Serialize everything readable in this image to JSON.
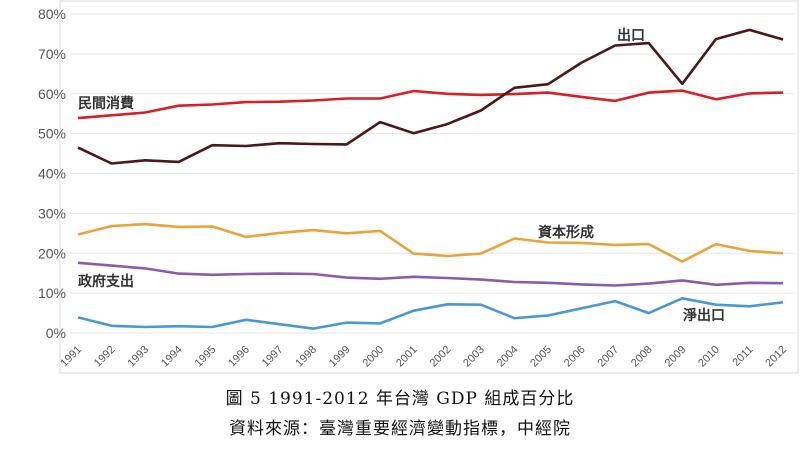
{
  "chart_data": {
    "type": "line",
    "categories": [
      "1991",
      "1992",
      "1993",
      "1994",
      "1995",
      "1996",
      "1997",
      "1998",
      "1999",
      "2000",
      "2001",
      "2002",
      "2003",
      "2004",
      "2005",
      "2006",
      "2007",
      "2008",
      "2009",
      "2010",
      "2011",
      "2012"
    ],
    "ylim": [
      0,
      80
    ],
    "yticks": [
      "0%",
      "10%",
      "20%",
      "30%",
      "40%",
      "50%",
      "60%",
      "70%",
      "80%"
    ],
    "grid": true,
    "series": [
      {
        "name": "民間消費",
        "color": "#d42027",
        "values": [
          53.9,
          54.6,
          55.3,
          57.0,
          57.3,
          57.9,
          58.0,
          58.3,
          58.8,
          58.8,
          60.7,
          60.0,
          59.7,
          59.9,
          60.3,
          59.2,
          58.2,
          60.3,
          60.8,
          58.6,
          60.1,
          60.3
        ]
      },
      {
        "name": "出口",
        "color": "#4a1818",
        "values": [
          46.5,
          42.5,
          43.3,
          42.9,
          47.1,
          46.9,
          47.6,
          47.4,
          47.3,
          52.9,
          50.1,
          52.4,
          55.8,
          61.5,
          62.4,
          67.8,
          72.1,
          72.7,
          62.5,
          73.7,
          76.0,
          73.6
        ]
      },
      {
        "name": "資本形成",
        "color": "#e8a33a",
        "values": [
          24.7,
          26.8,
          27.3,
          26.6,
          26.7,
          24.1,
          25.1,
          25.8,
          25.0,
          25.6,
          19.9,
          19.3,
          19.9,
          23.7,
          22.7,
          22.6,
          22.1,
          22.3,
          17.9,
          22.3,
          20.6,
          20.0
        ]
      },
      {
        "name": "政府支出",
        "color": "#8a5ca8",
        "values": [
          17.6,
          16.9,
          16.2,
          14.9,
          14.6,
          14.8,
          14.9,
          14.8,
          13.9,
          13.6,
          14.1,
          13.8,
          13.4,
          12.8,
          12.6,
          12.2,
          11.9,
          12.4,
          13.2,
          12.1,
          12.6,
          12.5
        ]
      },
      {
        "name": "淨出口",
        "color": "#4a98d0",
        "values": [
          3.9,
          1.8,
          1.5,
          1.7,
          1.5,
          3.3,
          2.2,
          1.1,
          2.6,
          2.4,
          5.6,
          7.2,
          7.1,
          3.7,
          4.4,
          6.2,
          8.0,
          5.0,
          8.7,
          7.1,
          6.7,
          7.7
        ]
      }
    ]
  },
  "caption": {
    "figure_title": "圖 5 1991-2012 年台灣 GDP 組成百分比",
    "source": "資料來源：臺灣重要經濟變動指標，中經院"
  }
}
